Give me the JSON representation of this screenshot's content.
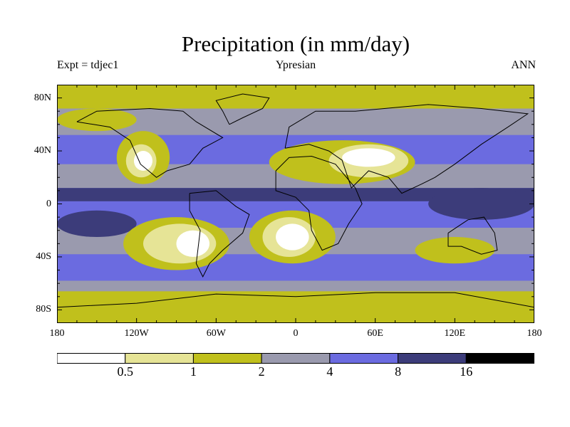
{
  "title": "Precipitation (in mm/day)",
  "subtitle_left": "Expt = tdjec1",
  "subtitle_center": "Ypresian",
  "subtitle_right": "ANN",
  "lat_ticks": [
    {
      "label": "80N",
      "lat": 80
    },
    {
      "label": "40N",
      "lat": 40
    },
    {
      "label": "0",
      "lat": 0
    },
    {
      "label": "40S",
      "lat": -40
    },
    {
      "label": "80S",
      "lat": -80
    }
  ],
  "lon_ticks": [
    {
      "label": "180",
      "lon": -180
    },
    {
      "label": "120W",
      "lon": -120
    },
    {
      "label": "60W",
      "lon": -60
    },
    {
      "label": "0",
      "lon": 0
    },
    {
      "label": "60E",
      "lon": 60
    },
    {
      "label": "120E",
      "lon": 120
    },
    {
      "label": "180",
      "lon": 180
    }
  ],
  "colorbar": {
    "colors": [
      "#ffffff",
      "#e6e496",
      "#c0c01c",
      "#9a9aae",
      "#6b6be0",
      "#3c3c7a",
      "#000000"
    ],
    "levels": [
      "0.5",
      "1",
      "2",
      "4",
      "8",
      "16"
    ]
  },
  "field": {
    "background_color": "#9a9aae",
    "zones": [
      {
        "bin": 3,
        "lon_range": [
          -180,
          180
        ],
        "lat_range": [
          -90,
          90
        ]
      },
      {
        "bin": 2,
        "lon_range": [
          -180,
          180
        ],
        "lat_range": [
          72,
          90
        ]
      },
      {
        "bin": 2,
        "lon_range": [
          -180,
          180
        ],
        "lat_range": [
          -90,
          -66
        ]
      },
      {
        "bin": 4,
        "lon_range": [
          -180,
          180
        ],
        "lat_range": [
          30,
          52
        ]
      },
      {
        "bin": 4,
        "lon_range": [
          -180,
          180
        ],
        "lat_range": [
          -58,
          -38
        ]
      },
      {
        "bin": 4,
        "lon_range": [
          -180,
          180
        ],
        "lat_range": [
          -18,
          12
        ]
      },
      {
        "bin": 5,
        "lon_range": [
          -180,
          180
        ],
        "lat_range": [
          2,
          12
        ]
      },
      {
        "bin": 5,
        "lon_range": [
          -180,
          -120
        ],
        "lat_range": [
          -25,
          -5
        ]
      },
      {
        "bin": 5,
        "lon_range": [
          100,
          180
        ],
        "lat_range": [
          -12,
          12
        ]
      },
      {
        "bin": 2,
        "lon_range": [
          -135,
          -95
        ],
        "lat_range": [
          15,
          55
        ]
      },
      {
        "bin": 1,
        "lon_range": [
          -128,
          -105
        ],
        "lat_range": [
          20,
          45
        ]
      },
      {
        "bin": 0,
        "lon_range": [
          -122,
          -108
        ],
        "lat_range": [
          25,
          40
        ]
      },
      {
        "bin": 2,
        "lon_range": [
          -130,
          -50
        ],
        "lat_range": [
          -50,
          -10
        ]
      },
      {
        "bin": 1,
        "lon_range": [
          -115,
          -60
        ],
        "lat_range": [
          -45,
          -15
        ]
      },
      {
        "bin": 0,
        "lon_range": [
          -90,
          -65
        ],
        "lat_range": [
          -40,
          -20
        ]
      },
      {
        "bin": 2,
        "lon_range": [
          -35,
          30
        ],
        "lat_range": [
          -45,
          -5
        ]
      },
      {
        "bin": 1,
        "lon_range": [
          -25,
          15
        ],
        "lat_range": [
          -40,
          -10
        ]
      },
      {
        "bin": 0,
        "lon_range": [
          -15,
          10
        ],
        "lat_range": [
          -35,
          -15
        ]
      },
      {
        "bin": 2,
        "lon_range": [
          -20,
          90
        ],
        "lat_range": [
          15,
          48
        ]
      },
      {
        "bin": 1,
        "lon_range": [
          25,
          85
        ],
        "lat_range": [
          20,
          45
        ]
      },
      {
        "bin": 0,
        "lon_range": [
          35,
          75
        ],
        "lat_range": [
          28,
          42
        ]
      },
      {
        "bin": 2,
        "lon_range": [
          -180,
          -120
        ],
        "lat_range": [
          55,
          72
        ]
      },
      {
        "bin": 2,
        "lon_range": [
          90,
          150
        ],
        "lat_range": [
          -45,
          -25
        ]
      }
    ]
  },
  "coastlines": [
    {
      "name": "north-america",
      "points": [
        [
          -165,
          62
        ],
        [
          -150,
          70
        ],
        [
          -110,
          72
        ],
        [
          -85,
          70
        ],
        [
          -75,
          62
        ],
        [
          -55,
          50
        ],
        [
          -70,
          42
        ],
        [
          -80,
          30
        ],
        [
          -97,
          25
        ],
        [
          -105,
          20
        ],
        [
          -117,
          30
        ],
        [
          -125,
          48
        ],
        [
          -140,
          58
        ],
        [
          -165,
          62
        ]
      ]
    },
    {
      "name": "south-america",
      "points": [
        [
          -80,
          8
        ],
        [
          -60,
          10
        ],
        [
          -45,
          -2
        ],
        [
          -35,
          -8
        ],
        [
          -40,
          -22
        ],
        [
          -55,
          -35
        ],
        [
          -65,
          -45
        ],
        [
          -70,
          -55
        ],
        [
          -75,
          -45
        ],
        [
          -72,
          -20
        ],
        [
          -80,
          -5
        ],
        [
          -80,
          8
        ]
      ]
    },
    {
      "name": "africa",
      "points": [
        [
          -15,
          25
        ],
        [
          -5,
          35
        ],
        [
          12,
          36
        ],
        [
          30,
          30
        ],
        [
          45,
          12
        ],
        [
          50,
          0
        ],
        [
          40,
          -15
        ],
        [
          32,
          -30
        ],
        [
          20,
          -35
        ],
        [
          12,
          -20
        ],
        [
          10,
          -5
        ],
        [
          0,
          5
        ],
        [
          -15,
          10
        ],
        [
          -15,
          25
        ]
      ]
    },
    {
      "name": "eurasia",
      "points": [
        [
          -8,
          42
        ],
        [
          -5,
          58
        ],
        [
          15,
          70
        ],
        [
          45,
          70
        ],
        [
          100,
          75
        ],
        [
          140,
          72
        ],
        [
          175,
          68
        ],
        [
          160,
          58
        ],
        [
          140,
          45
        ],
        [
          120,
          30
        ],
        [
          105,
          20
        ],
        [
          95,
          15
        ],
        [
          80,
          8
        ],
        [
          70,
          20
        ],
        [
          55,
          25
        ],
        [
          42,
          12
        ],
        [
          35,
          33
        ],
        [
          25,
          40
        ],
        [
          10,
          45
        ],
        [
          -8,
          42
        ]
      ]
    },
    {
      "name": "australia",
      "points": [
        [
          115,
          -22
        ],
        [
          130,
          -12
        ],
        [
          142,
          -10
        ],
        [
          150,
          -22
        ],
        [
          152,
          -35
        ],
        [
          140,
          -38
        ],
        [
          125,
          -32
        ],
        [
          115,
          -32
        ],
        [
          115,
          -22
        ]
      ]
    },
    {
      "name": "antarctica",
      "points": [
        [
          -180,
          -78
        ],
        [
          -120,
          -75
        ],
        [
          -60,
          -68
        ],
        [
          0,
          -70
        ],
        [
          60,
          -67
        ],
        [
          120,
          -67
        ],
        [
          180,
          -78
        ]
      ]
    },
    {
      "name": "greenland",
      "points": [
        [
          -50,
          60
        ],
        [
          -40,
          65
        ],
        [
          -25,
          72
        ],
        [
          -20,
          80
        ],
        [
          -40,
          83
        ],
        [
          -60,
          78
        ],
        [
          -55,
          70
        ],
        [
          -50,
          60
        ]
      ]
    }
  ]
}
